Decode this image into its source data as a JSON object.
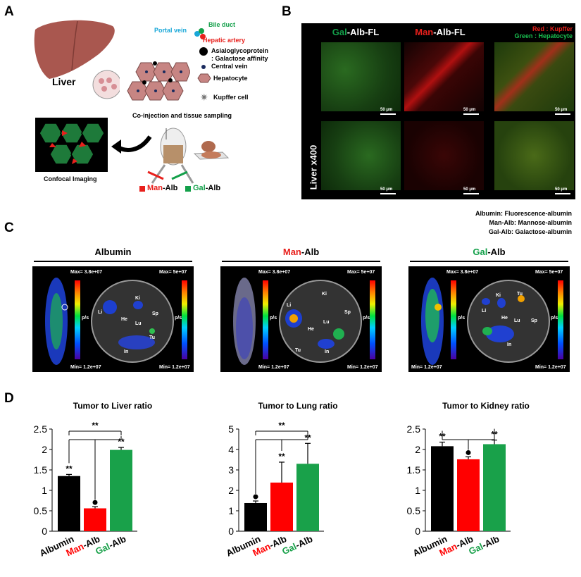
{
  "panelA": {
    "label": "A",
    "liver": "Liver",
    "legend": {
      "portal_vein": "Portal vein",
      "bile_duct": "Bile duct",
      "hepatic_artery": "Hepatic artery",
      "asialo": "Asialoglycoprotein",
      "galactose": ": Galactose affinity",
      "central_vein": "Central vein",
      "hepatocyte": "Hepatocyte",
      "kupffer": "Kupffer cell"
    },
    "coinjection": "Co-injection and tissue sampling",
    "confocal": "Confocal Imaging",
    "man_prefix": "Man",
    "man_suffix": "-Alb",
    "gal_prefix": "Gal",
    "gal_suffix": "-Alb"
  },
  "panelB": {
    "label": "B",
    "col1_prefix": "Gal",
    "col1_suffix": "-Alb-FL",
    "col2_prefix": "Man",
    "col2_suffix": "-Alb-FL",
    "merge_red": "Red : Kupffer",
    "merge_green": "Green : Hepatocyte",
    "scale": "50 μm",
    "side": "Liver x400"
  },
  "panelC": {
    "label": "C",
    "legend": [
      "Albumin:  Fluorescence-albumin",
      "Man-Alb:  Mannose-albumin",
      "Gal-Alb:  Galactose-albumin"
    ],
    "titles": {
      "albumin": "Albumin",
      "man_prefix": "Man",
      "gal_prefix": "Gal",
      "suffix": "-Alb"
    },
    "max_left": "Max= 3.8e+07",
    "max_right": "Max= 5e+07",
    "min": "Min= 1.2e+07",
    "psd": "p/s",
    "organs": {
      "ki": "Ki",
      "li": "Li",
      "lu": "Lu",
      "sp": "Sp",
      "tu": "Tu",
      "in": "In",
      "he": "He"
    }
  },
  "panelD": {
    "label": "D"
  },
  "colors": {
    "albumin": "#000000",
    "man": "#ff0000",
    "gal": "#19a14a"
  },
  "chart_data": [
    {
      "type": "bar",
      "title": "Tumor to Liver ratio",
      "categories": [
        "Albumin",
        "Man-Alb",
        "Gal-Alb"
      ],
      "values": [
        1.35,
        0.56,
        1.99
      ],
      "errors": [
        0.04,
        0.04,
        0.06
      ],
      "ylim": [
        0,
        2.5
      ],
      "yticks": [
        "0",
        "0.5",
        "1",
        "1.5",
        "2",
        "2.5"
      ],
      "sig": [
        "**",
        "",
        "**"
      ],
      "bracket_sig": "**"
    },
    {
      "type": "bar",
      "title": "Tumor to Lung ratio",
      "categories": [
        "Albumin",
        "Man-Alb",
        "Gal-Alb"
      ],
      "values": [
        1.38,
        2.38,
        3.3
      ],
      "errors": [
        0.1,
        1.0,
        1.0
      ],
      "ylim": [
        0,
        5
      ],
      "yticks": [
        "0",
        "1",
        "2",
        "3",
        "4",
        "5"
      ],
      "sig": [
        "",
        "**",
        "**"
      ],
      "bracket_sig": "**"
    },
    {
      "type": "bar",
      "title": "Tumor to Kidney ratio",
      "categories": [
        "Albumin",
        "Man-Alb",
        "Gal-Alb"
      ],
      "values": [
        2.08,
        1.76,
        2.13
      ],
      "errors": [
        0.1,
        0.06,
        0.1
      ],
      "ylim": [
        0,
        2.5
      ],
      "yticks": [
        "0",
        "0.5",
        "1",
        "1.5",
        "2",
        "2.5"
      ],
      "sig": [
        "**",
        "",
        "**"
      ],
      "bracket_sig": ""
    }
  ]
}
